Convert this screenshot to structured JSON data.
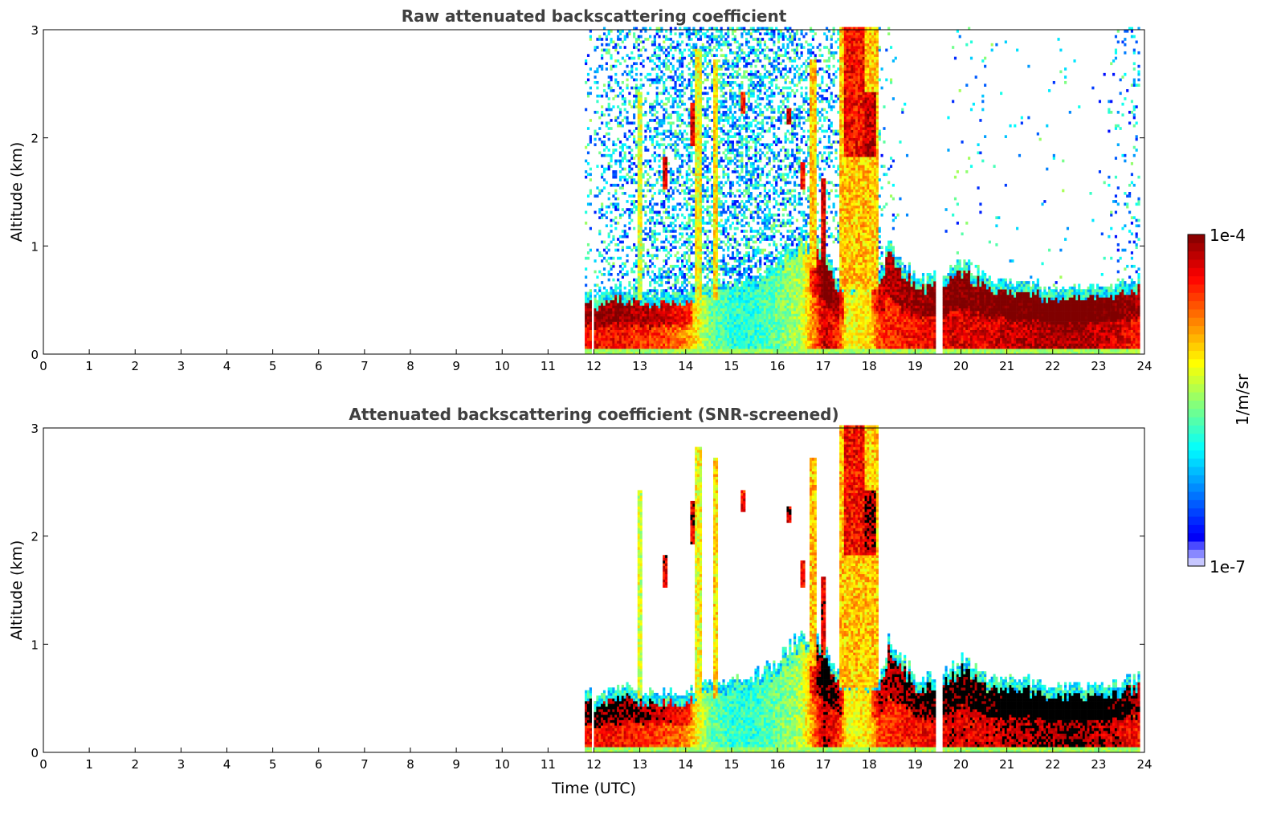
{
  "chart_data": {
    "type": "heatmap",
    "xlabel": "Time (UTC)",
    "xlim": [
      0,
      24
    ],
    "ylim": [
      0,
      3
    ],
    "xticks": [
      "0",
      "1",
      "2",
      "3",
      "4",
      "5",
      "6",
      "7",
      "8",
      "9",
      "10",
      "11",
      "12",
      "13",
      "14",
      "15",
      "16",
      "17",
      "18",
      "19",
      "20",
      "21",
      "22",
      "23",
      "24"
    ],
    "yticks": [
      "0",
      "1",
      "2",
      "3"
    ],
    "panels": [
      {
        "title": "Raw attenuated backscattering coefficient",
        "ylabel": "Altitude (km)",
        "screened": false
      },
      {
        "title": "Attenuated backscattering coefficient (SNR-screened)",
        "ylabel": "Altitude (km)",
        "screened": true
      }
    ],
    "colorbar": {
      "label": "1/m/sr",
      "min_label": "1e-7",
      "max_label": "1e-4",
      "log10_range": [
        -7,
        -4
      ],
      "colormap": "jet"
    },
    "features": {
      "data_start_utc": 11.8,
      "data_end_utc": 23.9,
      "gaps_utc": [
        [
          11.95,
          12.0
        ],
        [
          19.45,
          19.58
        ]
      ],
      "time_points_utc": [
        11.8,
        12.0,
        12.5,
        13.0,
        13.5,
        14.0,
        14.5,
        15.0,
        15.5,
        16.0,
        16.5,
        17.0,
        17.3,
        17.5,
        18.0,
        18.2,
        18.4,
        19.0,
        19.5,
        20.0,
        20.5,
        21.0,
        21.5,
        22.0,
        22.5,
        23.0,
        23.5,
        23.9
      ],
      "layer_top_km": [
        0.5,
        0.4,
        0.5,
        0.45,
        0.45,
        0.45,
        0.55,
        0.55,
        0.6,
        0.75,
        1.0,
        0.85,
        0.6,
        0.6,
        0.6,
        0.6,
        0.9,
        0.6,
        0.6,
        0.75,
        0.6,
        0.55,
        0.55,
        0.5,
        0.5,
        0.5,
        0.55,
        0.6
      ],
      "layer_log10_beta": [
        -4.4,
        -4.4,
        -4.4,
        -4.5,
        -4.6,
        -4.8,
        -5.6,
        -5.8,
        -5.8,
        -5.6,
        -5.4,
        -4.2,
        -4.5,
        -5.2,
        -5.1,
        -4.6,
        -4.5,
        -4.4,
        -4.3,
        -4.3,
        -4.3,
        -4.2,
        -4.2,
        -4.1,
        -4.1,
        -4.2,
        -4.3,
        -4.5
      ],
      "noise_density": [
        0.15,
        0.2,
        0.3,
        0.35,
        0.45,
        0.5,
        0.5,
        0.55,
        0.5,
        0.45,
        0.4,
        0.35,
        0.3,
        0.3,
        0.3,
        0.15,
        0.05,
        0.0,
        0.0,
        0.04,
        0.04,
        0.01,
        0.01,
        0.02,
        0.01,
        0.01,
        0.1,
        0.2
      ],
      "clouds": [
        {
          "t": [
            17.35,
            18.2
          ],
          "z_km": [
            0.6,
            3.0
          ],
          "log10_beta": -5.0
        },
        {
          "t": [
            17.45,
            17.9
          ],
          "z_km": [
            1.8,
            3.0
          ],
          "log10_beta": -4.4
        },
        {
          "t": [
            17.9,
            18.15
          ],
          "z_km": [
            1.8,
            2.4
          ],
          "log10_beta": -4.2
        },
        {
          "t": [
            14.2,
            14.35
          ],
          "z_km": [
            0.5,
            2.8
          ],
          "log10_beta": -5.2
        },
        {
          "t": [
            14.6,
            14.7
          ],
          "z_km": [
            0.5,
            2.7
          ],
          "log10_beta": -5.1
        },
        {
          "t": [
            12.95,
            13.05
          ],
          "z_km": [
            0.5,
            2.4
          ],
          "log10_beta": -5.3
        },
        {
          "t": [
            16.7,
            16.85
          ],
          "z_km": [
            0.8,
            2.7
          ],
          "log10_beta": -5.0
        },
        {
          "t": [
            13.5,
            13.6
          ],
          "z_km": [
            1.5,
            1.8
          ],
          "log10_beta": -4.3
        },
        {
          "t": [
            15.2,
            15.3
          ],
          "z_km": [
            2.2,
            2.4
          ],
          "log10_beta": -4.4
        },
        {
          "t": [
            16.2,
            16.3
          ],
          "z_km": [
            2.1,
            2.25
          ],
          "log10_beta": -4.2
        },
        {
          "t": [
            16.5,
            16.6
          ],
          "z_km": [
            1.5,
            1.75
          ],
          "log10_beta": -4.4
        },
        {
          "t": [
            14.1,
            14.2
          ],
          "z_km": [
            1.9,
            2.3
          ],
          "log10_beta": -4.3
        },
        {
          "t": [
            16.95,
            17.05
          ],
          "z_km": [
            0.9,
            1.6
          ],
          "log10_beta": -4.3
        }
      ]
    }
  }
}
